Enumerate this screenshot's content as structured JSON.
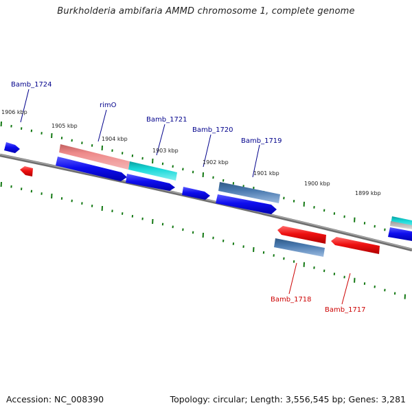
{
  "title": "Burkholderia ambifaria AMMD chromosome 1, complete genome",
  "footer": {
    "accession": "Accession: NC_008390",
    "summary": "Topology: circular; Length: 3,556,545 bp; Genes: 3,281"
  },
  "colors": {
    "plus_strand": "#1010ee",
    "minus_strand": "#ee1010",
    "label_plus": "#00008b",
    "label_minus": "#cc0000",
    "tick": "#117711",
    "backbone": "#777777",
    "pink_gene": "#e87878",
    "cyan_gene": "#12c8c8",
    "steel_gene": "#4a7ab0"
  },
  "scale_labels": [
    {
      "text": "1906 kbp",
      "kbp": 1906
    },
    {
      "text": "1905 kbp",
      "kbp": 1905
    },
    {
      "text": "1904 kbp",
      "kbp": 1904
    },
    {
      "text": "1903 kbp",
      "kbp": 1903
    },
    {
      "text": "1902 kbp",
      "kbp": 1902
    },
    {
      "text": "1901 kbp",
      "kbp": 1901
    },
    {
      "text": "1900 kbp",
      "kbp": 1900
    },
    {
      "text": "1899 kbp",
      "kbp": 1899
    }
  ],
  "gene_labels": [
    {
      "text": "Bamb_1724",
      "strand": "plus"
    },
    {
      "text": "rimO",
      "strand": "plus"
    },
    {
      "text": "Bamb_1721",
      "strand": "plus"
    },
    {
      "text": "Bamb_1720",
      "strand": "plus"
    },
    {
      "text": "Bamb_1719",
      "strand": "plus"
    },
    {
      "text": "Bamb_1718",
      "strand": "minus"
    },
    {
      "text": "Bamb_1717",
      "strand": "minus"
    }
  ]
}
